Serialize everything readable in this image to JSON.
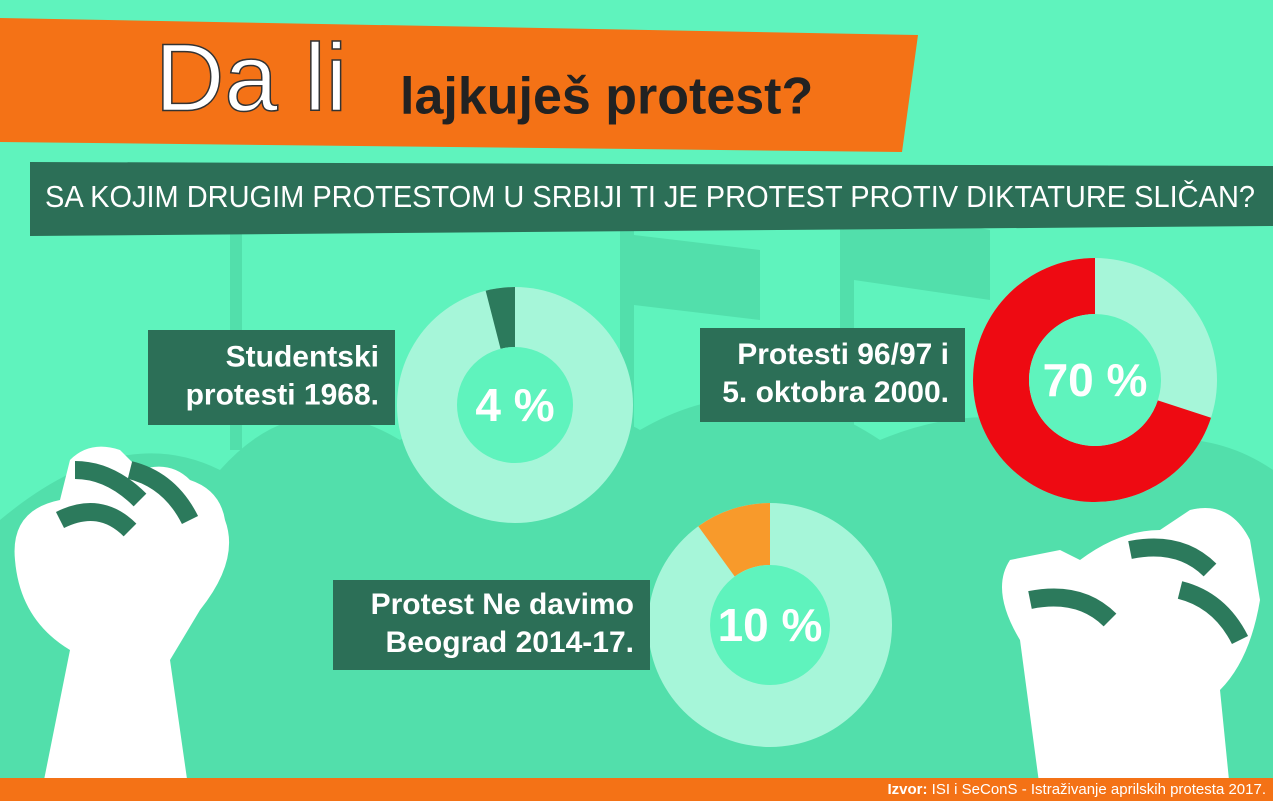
{
  "title_light": "Da li",
  "title_bold": "lajkuješ protest?",
  "question": "SA KOJIM DRUGIM PROTESTOM U SRBIJI TI JE PROTEST PROTIV DIKTATURE SLIČAN?",
  "chart_data": [
    {
      "type": "donut",
      "title_lines": [
        "Studentski",
        "protesti 1968."
      ],
      "values": [
        4
      ],
      "value_labels": [
        "4 %"
      ],
      "color": "#2c7a5c"
    },
    {
      "type": "donut",
      "title_lines": [
        "Protesti 96/97 i",
        "5. oktobra 2000."
      ],
      "values": [
        70
      ],
      "value_labels": [
        "70 %"
      ],
      "color": "#ee0a12"
    },
    {
      "type": "donut",
      "title_lines": [
        "Protest Ne davimo",
        "Beograd 2014-17."
      ],
      "values": [
        10
      ],
      "value_labels": [
        "10 %"
      ],
      "color": "#f89a2b"
    }
  ],
  "source": {
    "label": "Izvor:",
    "text": "ISI i SeConS - Istraživanje aprilskih protesta 2017."
  }
}
